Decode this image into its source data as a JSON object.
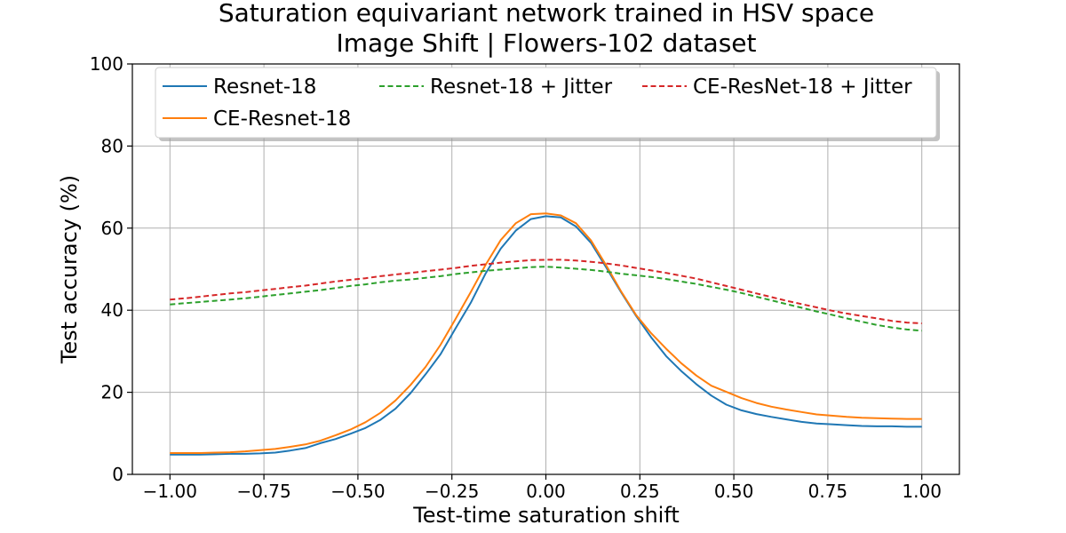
{
  "chart_data": {
    "type": "line",
    "title": "Saturation equivariant network trained in HSV space",
    "subtitle": "Image Shift | Flowers-102 dataset",
    "xlabel": "Test-time saturation shift",
    "ylabel": "Test accuracy (%)",
    "xlim": [
      -1.1,
      1.1
    ],
    "ylim": [
      0,
      100
    ],
    "grid": true,
    "legend_position": "top",
    "x_ticks": [
      -1.0,
      -0.75,
      -0.5,
      -0.25,
      0.0,
      0.25,
      0.5,
      0.75,
      1.0
    ],
    "x_tick_labels": [
      "−1.00",
      "−0.75",
      "−0.50",
      "−0.25",
      "0.00",
      "0.25",
      "0.50",
      "0.75",
      "1.00"
    ],
    "y_ticks": [
      0,
      20,
      40,
      60,
      80,
      100
    ],
    "y_tick_labels": [
      "0",
      "20",
      "40",
      "60",
      "80",
      "100"
    ],
    "x": [
      -1.0,
      -0.96,
      -0.92,
      -0.88,
      -0.84,
      -0.8,
      -0.76,
      -0.72,
      -0.68,
      -0.64,
      -0.6,
      -0.56,
      -0.52,
      -0.48,
      -0.44,
      -0.4,
      -0.36,
      -0.32,
      -0.28,
      -0.24,
      -0.2,
      -0.16,
      -0.12,
      -0.08,
      -0.04,
      0.0,
      0.04,
      0.08,
      0.12,
      0.16,
      0.2,
      0.24,
      0.28,
      0.32,
      0.36,
      0.4,
      0.44,
      0.48,
      0.52,
      0.56,
      0.6,
      0.64,
      0.68,
      0.72,
      0.76,
      0.8,
      0.84,
      0.88,
      0.92,
      0.96,
      1.0
    ],
    "series": [
      {
        "name": "Resnet-18",
        "color": "#1f77b4",
        "dashed": false,
        "values": [
          4.8,
          4.8,
          4.8,
          4.9,
          5.0,
          5.0,
          5.1,
          5.3,
          5.8,
          6.4,
          7.6,
          8.6,
          9.9,
          11.3,
          13.3,
          16.0,
          19.8,
          24.4,
          29.3,
          35.6,
          41.8,
          49.0,
          55.0,
          59.4,
          62.2,
          62.9,
          62.6,
          60.4,
          56.4,
          50.5,
          44.4,
          38.6,
          33.4,
          28.8,
          25.2,
          22.0,
          19.2,
          17.0,
          15.6,
          14.7,
          14.0,
          13.4,
          12.8,
          12.4,
          12.2,
          12.0,
          11.8,
          11.7,
          11.7,
          11.6,
          11.6
        ]
      },
      {
        "name": "CE-Resnet-18",
        "color": "#ff7f0e",
        "dashed": false,
        "values": [
          5.2,
          5.2,
          5.2,
          5.3,
          5.4,
          5.6,
          5.9,
          6.2,
          6.7,
          7.3,
          8.2,
          9.5,
          10.9,
          12.7,
          15.0,
          18.0,
          21.8,
          26.2,
          31.6,
          37.9,
          44.4,
          51.1,
          57.1,
          61.2,
          63.4,
          63.6,
          63.1,
          61.2,
          57.0,
          51.0,
          44.6,
          38.8,
          34.4,
          30.6,
          27.1,
          24.1,
          21.6,
          20.1,
          18.6,
          17.4,
          16.5,
          15.8,
          15.2,
          14.6,
          14.3,
          14.0,
          13.8,
          13.7,
          13.6,
          13.5,
          13.5
        ]
      },
      {
        "name": "Resnet-18 + Jitter",
        "color": "#2ca02c",
        "dashed": true,
        "values": [
          41.4,
          41.7,
          42.0,
          42.3,
          42.6,
          42.9,
          43.3,
          43.7,
          44.1,
          44.5,
          44.9,
          45.4,
          45.9,
          46.3,
          46.8,
          47.2,
          47.5,
          47.9,
          48.3,
          48.8,
          49.2,
          49.6,
          49.9,
          50.2,
          50.5,
          50.6,
          50.4,
          50.1,
          49.8,
          49.4,
          48.9,
          48.5,
          48.1,
          47.6,
          47.0,
          46.4,
          45.7,
          45.0,
          44.2,
          43.3,
          42.4,
          41.5,
          40.6,
          39.7,
          38.9,
          38.0,
          37.2,
          36.4,
          35.8,
          35.3,
          35.0
        ]
      },
      {
        "name": "CE-ResNet-18 + Jitter",
        "color": "#d62728",
        "dashed": true,
        "values": [
          42.6,
          42.9,
          43.3,
          43.7,
          44.1,
          44.4,
          44.8,
          45.2,
          45.6,
          46.0,
          46.5,
          47.0,
          47.4,
          47.8,
          48.3,
          48.7,
          49.1,
          49.5,
          49.9,
          50.3,
          50.8,
          51.2,
          51.6,
          51.9,
          52.2,
          52.3,
          52.3,
          52.1,
          51.8,
          51.4,
          50.9,
          50.3,
          49.7,
          49.1,
          48.4,
          47.7,
          46.8,
          45.9,
          45.0,
          44.1,
          43.2,
          42.3,
          41.5,
          40.7,
          39.9,
          39.2,
          38.6,
          38.0,
          37.4,
          37.0,
          36.8
        ]
      }
    ],
    "legend_order": [
      "Resnet-18",
      "Resnet-18 + Jitter",
      "CE-ResNet-18 + Jitter",
      "CE-Resnet-18"
    ]
  }
}
